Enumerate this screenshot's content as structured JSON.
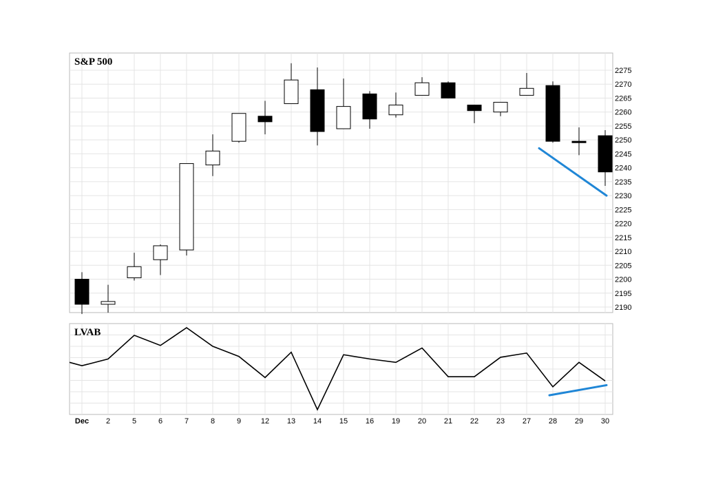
{
  "chart_data": [
    {
      "type": "candlestick",
      "title": "S&P 500",
      "categories": [
        "Dec",
        "2",
        "5",
        "6",
        "7",
        "8",
        "9",
        "12",
        "13",
        "14",
        "15",
        "16",
        "19",
        "20",
        "21",
        "22",
        "23",
        "27",
        "28",
        "29",
        "30"
      ],
      "ohlc": [
        {
          "open": 2200.0,
          "high": 2202.5,
          "low": 2187.5,
          "close": 2191.0
        },
        {
          "open": 2191.0,
          "high": 2198.0,
          "low": 2188.0,
          "close": 2192.0
        },
        {
          "open": 2200.5,
          "high": 2209.5,
          "low": 2199.5,
          "close": 2204.5
        },
        {
          "open": 2207.0,
          "high": 2212.5,
          "low": 2201.5,
          "close": 2212.0
        },
        {
          "open": 2210.5,
          "high": 2241.5,
          "low": 2208.5,
          "close": 2241.5
        },
        {
          "open": 2241.0,
          "high": 2252.0,
          "low": 2237.0,
          "close": 2246.0
        },
        {
          "open": 2249.5,
          "high": 2259.5,
          "low": 2249.0,
          "close": 2259.5
        },
        {
          "open": 2258.5,
          "high": 2264.0,
          "low": 2252.0,
          "close": 2256.5
        },
        {
          "open": 2263.0,
          "high": 2277.5,
          "low": 2263.0,
          "close": 2271.5
        },
        {
          "open": 2268.0,
          "high": 2276.0,
          "low": 2248.0,
          "close": 2253.0
        },
        {
          "open": 2254.0,
          "high": 2272.0,
          "low": 2254.0,
          "close": 2262.0
        },
        {
          "open": 2266.5,
          "high": 2267.5,
          "low": 2254.0,
          "close": 2257.5
        },
        {
          "open": 2259.0,
          "high": 2267.0,
          "low": 2258.0,
          "close": 2262.5
        },
        {
          "open": 2266.0,
          "high": 2272.5,
          "low": 2266.0,
          "close": 2270.5
        },
        {
          "open": 2270.5,
          "high": 2271.0,
          "low": 2265.0,
          "close": 2265.0
        },
        {
          "open": 2262.5,
          "high": 2262.5,
          "low": 2256.0,
          "close": 2260.5
        },
        {
          "open": 2260.0,
          "high": 2263.5,
          "low": 2258.5,
          "close": 2263.5
        },
        {
          "open": 2266.0,
          "high": 2274.0,
          "low": 2266.0,
          "close": 2268.5
        },
        {
          "open": 2269.5,
          "high": 2271.0,
          "low": 2249.0,
          "close": 2249.5
        },
        {
          "open": 2249.5,
          "high": 2254.5,
          "low": 2244.5,
          "close": 2249.0
        },
        {
          "open": 2251.5,
          "high": 2253.5,
          "low": 2233.5,
          "close": 2238.5
        }
      ],
      "ylim": [
        2185,
        2280
      ],
      "yticks": [
        2190,
        2195,
        2200,
        2205,
        2210,
        2215,
        2220,
        2225,
        2230,
        2235,
        2240,
        2245,
        2250,
        2255,
        2260,
        2265,
        2270,
        2275
      ],
      "grid": true,
      "annotations": [
        {
          "type": "trendline",
          "color": "#1f86d6",
          "from": {
            "x": "27",
            "y": 2247
          },
          "to": {
            "x": "30",
            "y": 2230
          }
        }
      ]
    },
    {
      "type": "line",
      "title": "LVAB",
      "categories": [
        "Dec",
        "2",
        "5",
        "6",
        "7",
        "8",
        "9",
        "12",
        "13",
        "14",
        "15",
        "16",
        "19",
        "20",
        "21",
        "22",
        "23",
        "27",
        "28",
        "29",
        "30"
      ],
      "values": [
        47,
        55,
        83,
        71,
        92,
        70,
        58,
        33,
        63,
        -5,
        60,
        55,
        51,
        68,
        34,
        34,
        57,
        62,
        22,
        51,
        29
      ],
      "ylim": [
        -10,
        110
      ],
      "lead_in": 51,
      "grid": true,
      "annotations": [
        {
          "type": "trendline",
          "color": "#1f86d6",
          "from": {
            "x": "27",
            "y": 12
          },
          "to": {
            "x": "30",
            "y": 24
          }
        }
      ]
    }
  ]
}
